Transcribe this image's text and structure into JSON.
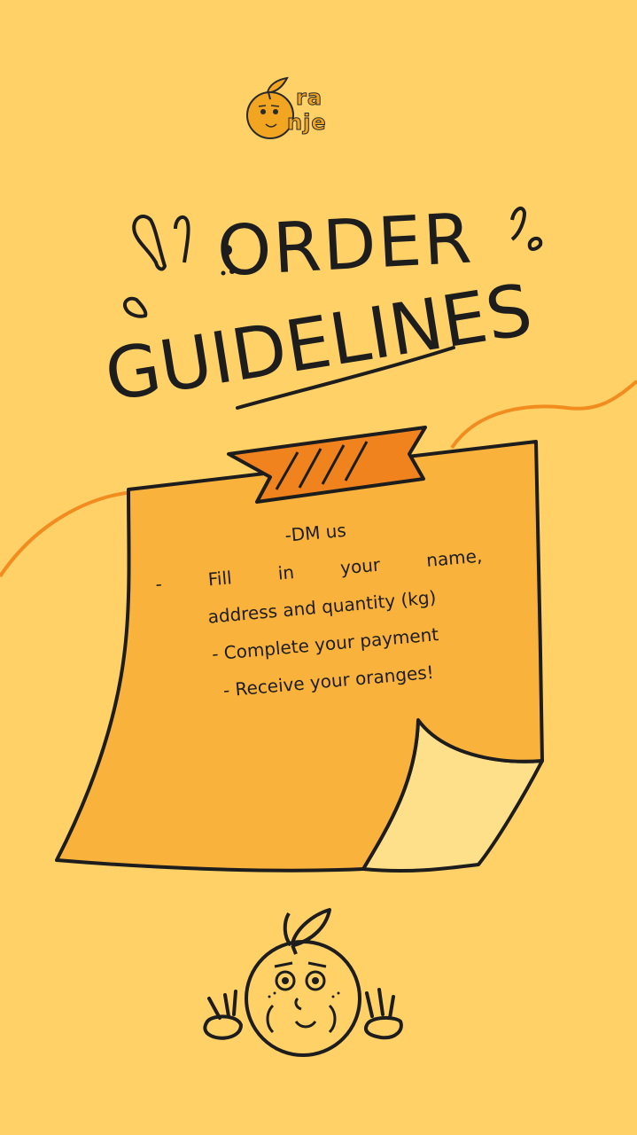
{
  "brand": {
    "logo_letters_top": "ra",
    "logo_letters_bottom": "nje"
  },
  "title": {
    "line1": "ORDER",
    "line2": "GUIDELINES"
  },
  "steps": [
    "-DM us",
    "- Fill in your name,",
    "address and quantity (kg)",
    "- Complete your payment",
    "- Receive your oranges!"
  ],
  "colors": {
    "background": "#FFD166",
    "note": "#F9B23B",
    "tape": "#F0831E",
    "accent_line": "#F28C1E",
    "ink": "#1d1d1d"
  },
  "icons": {
    "logo": "orange-face-logo",
    "mascot": "orange-mascot-peace-sign"
  }
}
